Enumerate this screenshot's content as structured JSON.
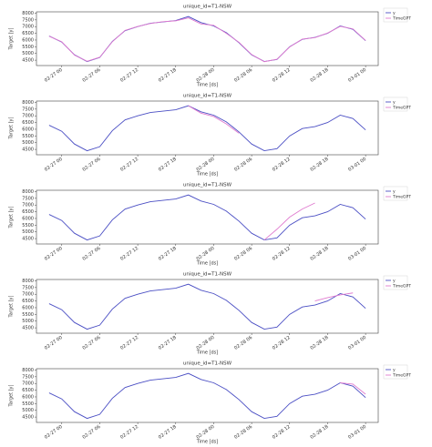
{
  "chart_data": [
    {
      "type": "line",
      "title": "unique_id=T1-NSW",
      "x_label": "Time [ds]",
      "y_label": "Target [y]",
      "legend": "outside-right",
      "x": [
        -2,
        0,
        2,
        4,
        6,
        8,
        10,
        12,
        14,
        16,
        18,
        20,
        22,
        24,
        26,
        28,
        30,
        32,
        34,
        36,
        38,
        40,
        42,
        44,
        46,
        48
      ],
      "xlim": [
        -4,
        50
      ],
      "xticks": [
        {
          "value": 0,
          "label": "02-27 00"
        },
        {
          "value": 6,
          "label": "02-27 06"
        },
        {
          "value": 12,
          "label": "02-27 12"
        },
        {
          "value": 18,
          "label": "02-27 18"
        },
        {
          "value": 24,
          "label": "02-28 00"
        },
        {
          "value": 30,
          "label": "02-28 06"
        },
        {
          "value": 36,
          "label": "02-28 12"
        },
        {
          "value": 42,
          "label": "02-28 18"
        },
        {
          "value": 48,
          "label": "03-01 00"
        }
      ],
      "ylim": [
        4100,
        8100
      ],
      "yticks": [
        4500,
        5000,
        5500,
        6000,
        6500,
        7000,
        7500,
        8000
      ],
      "series": [
        {
          "name": "y",
          "color": "#4b4fc4",
          "values": [
            6300,
            5850,
            4900,
            4400,
            4700,
            5900,
            6700,
            7000,
            7250,
            7350,
            7450,
            7750,
            7300,
            7050,
            6550,
            5800,
            4900,
            4400,
            4550,
            5500,
            6050,
            6200,
            6500,
            7050,
            6800,
            5950
          ]
        },
        {
          "name": "TimeGPT",
          "color": "#e07bcf",
          "values": [
            6280,
            5870,
            4880,
            4420,
            4720,
            5880,
            6720,
            7010,
            7230,
            7370,
            7430,
            7650,
            7200,
            7100,
            6500,
            5830,
            4920,
            4390,
            4570,
            5480,
            6070,
            6180,
            6520,
            7020,
            6830,
            5970
          ]
        }
      ]
    },
    {
      "type": "line",
      "title": "unique_id=T1-NSW",
      "x_label": "Time [ds]",
      "y_label": "Target [y]",
      "legend": "outside-right",
      "x": [
        -2,
        0,
        2,
        4,
        6,
        8,
        10,
        12,
        14,
        16,
        18,
        20,
        22,
        24,
        26,
        28,
        30,
        32,
        34,
        36,
        38,
        40,
        42,
        44,
        46,
        48
      ],
      "xlim": [
        -4,
        50
      ],
      "xticks": [
        {
          "value": 0,
          "label": "02-27 00"
        },
        {
          "value": 6,
          "label": "02-27 06"
        },
        {
          "value": 12,
          "label": "02-27 12"
        },
        {
          "value": 18,
          "label": "02-27 18"
        },
        {
          "value": 24,
          "label": "02-28 00"
        },
        {
          "value": 30,
          "label": "02-28 06"
        },
        {
          "value": 36,
          "label": "02-28 12"
        },
        {
          "value": 42,
          "label": "02-28 18"
        },
        {
          "value": 48,
          "label": "03-01 00"
        }
      ],
      "ylim": [
        4100,
        8100
      ],
      "yticks": [
        4500,
        5000,
        5500,
        6000,
        6500,
        7000,
        7500,
        8000
      ],
      "series": [
        {
          "name": "y",
          "color": "#4b4fc4",
          "values": [
            6300,
            5850,
            4900,
            4400,
            4700,
            5900,
            6700,
            7000,
            7250,
            7350,
            7450,
            7750,
            7300,
            7050,
            6550,
            5800,
            4900,
            4400,
            4550,
            5500,
            6050,
            6200,
            6500,
            7050,
            6800,
            5950
          ]
        },
        {
          "name": "TimeGPT",
          "color": "#e07bcf",
          "values": [
            null,
            null,
            null,
            null,
            null,
            null,
            null,
            null,
            null,
            null,
            null,
            7750,
            7200,
            6950,
            6400,
            5700,
            null,
            null,
            null,
            null,
            null,
            null,
            null,
            null,
            null,
            null
          ]
        }
      ]
    },
    {
      "type": "line",
      "title": "unique_id=T1-NSW",
      "x_label": "Time [ds]",
      "y_label": "Target [y]",
      "legend": "outside-right",
      "x": [
        -2,
        0,
        2,
        4,
        6,
        8,
        10,
        12,
        14,
        16,
        18,
        20,
        22,
        24,
        26,
        28,
        30,
        32,
        34,
        36,
        38,
        40,
        42,
        44,
        46,
        48
      ],
      "xlim": [
        -4,
        50
      ],
      "xticks": [
        {
          "value": 0,
          "label": "02-27 00"
        },
        {
          "value": 6,
          "label": "02-27 06"
        },
        {
          "value": 12,
          "label": "02-27 12"
        },
        {
          "value": 18,
          "label": "02-27 18"
        },
        {
          "value": 24,
          "label": "02-28 00"
        },
        {
          "value": 30,
          "label": "02-28 06"
        },
        {
          "value": 36,
          "label": "02-28 12"
        },
        {
          "value": 42,
          "label": "02-28 18"
        },
        {
          "value": 48,
          "label": "03-01 00"
        }
      ],
      "ylim": [
        4100,
        8100
      ],
      "yticks": [
        4500,
        5000,
        5500,
        6000,
        6500,
        7000,
        7500,
        8000
      ],
      "series": [
        {
          "name": "y",
          "color": "#4b4fc4",
          "values": [
            6300,
            5850,
            4900,
            4400,
            4700,
            5900,
            6700,
            7000,
            7250,
            7350,
            7450,
            7750,
            7300,
            7050,
            6550,
            5800,
            4900,
            4400,
            4550,
            5500,
            6050,
            6200,
            6500,
            7050,
            6800,
            5950
          ]
        },
        {
          "name": "TimeGPT",
          "color": "#e07bcf",
          "values": [
            null,
            null,
            null,
            null,
            null,
            null,
            null,
            null,
            null,
            null,
            null,
            null,
            null,
            null,
            null,
            null,
            null,
            4400,
            5200,
            6100,
            6700,
            7150,
            null,
            null,
            null,
            null
          ]
        }
      ]
    },
    {
      "type": "line",
      "title": "unique_id=T1-NSW",
      "x_label": "Time [ds]",
      "y_label": "Target [y]",
      "legend": "outside-right",
      "x": [
        -2,
        0,
        2,
        4,
        6,
        8,
        10,
        12,
        14,
        16,
        18,
        20,
        22,
        24,
        26,
        28,
        30,
        32,
        34,
        36,
        38,
        40,
        42,
        44,
        46,
        48
      ],
      "xlim": [
        -4,
        50
      ],
      "xticks": [
        {
          "value": 0,
          "label": "02-27 00"
        },
        {
          "value": 6,
          "label": "02-27 06"
        },
        {
          "value": 12,
          "label": "02-27 12"
        },
        {
          "value": 18,
          "label": "02-27 18"
        },
        {
          "value": 24,
          "label": "02-28 00"
        },
        {
          "value": 30,
          "label": "02-28 06"
        },
        {
          "value": 36,
          "label": "02-28 12"
        },
        {
          "value": 42,
          "label": "02-28 18"
        },
        {
          "value": 48,
          "label": "03-01 00"
        }
      ],
      "ylim": [
        4100,
        8100
      ],
      "yticks": [
        4500,
        5000,
        5500,
        6000,
        6500,
        7000,
        7500,
        8000
      ],
      "series": [
        {
          "name": "y",
          "color": "#4b4fc4",
          "values": [
            6300,
            5850,
            4900,
            4400,
            4700,
            5900,
            6700,
            7000,
            7250,
            7350,
            7450,
            7750,
            7300,
            7050,
            6550,
            5800,
            4900,
            4400,
            4550,
            5500,
            6050,
            6200,
            6500,
            7050,
            6800,
            5950
          ]
        },
        {
          "name": "TimeGPT",
          "color": "#e07bcf",
          "values": [
            null,
            null,
            null,
            null,
            null,
            null,
            null,
            null,
            null,
            null,
            null,
            null,
            null,
            null,
            null,
            null,
            null,
            null,
            null,
            null,
            null,
            6500,
            6750,
            6950,
            7100,
            null
          ]
        }
      ]
    },
    {
      "type": "line",
      "title": "unique_id=T1-NSW",
      "x_label": "Time [ds]",
      "y_label": "Target [y]",
      "legend": "outside-right",
      "x": [
        -2,
        0,
        2,
        4,
        6,
        8,
        10,
        12,
        14,
        16,
        18,
        20,
        22,
        24,
        26,
        28,
        30,
        32,
        34,
        36,
        38,
        40,
        42,
        44,
        46,
        48
      ],
      "xlim": [
        -4,
        50
      ],
      "xticks": [
        {
          "value": 0,
          "label": "02-27 00"
        },
        {
          "value": 6,
          "label": "02-27 06"
        },
        {
          "value": 12,
          "label": "02-27 12"
        },
        {
          "value": 18,
          "label": "02-27 18"
        },
        {
          "value": 24,
          "label": "02-28 00"
        },
        {
          "value": 30,
          "label": "02-28 06"
        },
        {
          "value": 36,
          "label": "02-28 12"
        },
        {
          "value": 42,
          "label": "02-28 18"
        },
        {
          "value": 48,
          "label": "03-01 00"
        }
      ],
      "ylim": [
        4100,
        8100
      ],
      "yticks": [
        4500,
        5000,
        5500,
        6000,
        6500,
        7000,
        7500,
        8000
      ],
      "series": [
        {
          "name": "y",
          "color": "#4b4fc4",
          "values": [
            6300,
            5850,
            4900,
            4400,
            4700,
            5900,
            6700,
            7000,
            7250,
            7350,
            7450,
            7750,
            7300,
            7050,
            6550,
            5800,
            4900,
            4400,
            4550,
            5500,
            6050,
            6200,
            6500,
            7050,
            6800,
            5950
          ]
        },
        {
          "name": "TimeGPT",
          "color": "#e07bcf",
          "values": [
            null,
            null,
            null,
            null,
            null,
            null,
            null,
            null,
            null,
            null,
            null,
            null,
            null,
            null,
            null,
            null,
            null,
            null,
            null,
            null,
            null,
            null,
            null,
            7050,
            6950,
            6200
          ]
        }
      ]
    }
  ]
}
